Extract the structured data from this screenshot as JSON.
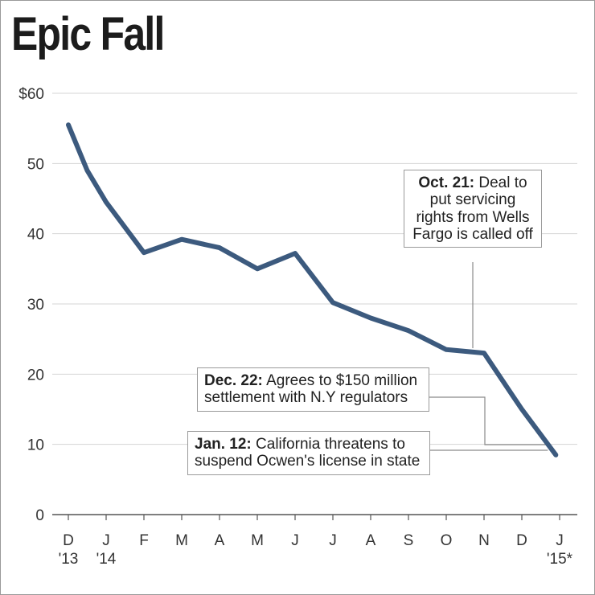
{
  "chart_data": {
    "type": "line",
    "title": "Epic Fall",
    "xlabel": "",
    "ylabel": "",
    "ylim": [
      0,
      60
    ],
    "yticks": [
      {
        "value": 60,
        "label": "$60"
      },
      {
        "value": 50,
        "label": "50"
      },
      {
        "value": 40,
        "label": "40"
      },
      {
        "value": 30,
        "label": "30"
      },
      {
        "value": 20,
        "label": "20"
      },
      {
        "value": 10,
        "label": "10"
      },
      {
        "value": 0,
        "label": "0"
      }
    ],
    "xticks": [
      {
        "line1": "D",
        "line2": "'13"
      },
      {
        "line1": "J",
        "line2": "'14"
      },
      {
        "line1": "F",
        "line2": ""
      },
      {
        "line1": "M",
        "line2": ""
      },
      {
        "line1": "A",
        "line2": ""
      },
      {
        "line1": "M",
        "line2": ""
      },
      {
        "line1": "J",
        "line2": ""
      },
      {
        "line1": "J",
        "line2": ""
      },
      {
        "line1": "A",
        "line2": ""
      },
      {
        "line1": "S",
        "line2": ""
      },
      {
        "line1": "O",
        "line2": ""
      },
      {
        "line1": "N",
        "line2": ""
      },
      {
        "line1": "D",
        "line2": ""
      },
      {
        "line1": "J",
        "line2": "'15*"
      }
    ],
    "grid": true,
    "line_color": "#3c5a7e",
    "series": [
      {
        "x": [
          0,
          0.5,
          1,
          2,
          3,
          4,
          5,
          6,
          7,
          8,
          9,
          10,
          11,
          11.5,
          12,
          12.9
        ],
        "values": [
          55.5,
          49,
          44.5,
          37.3,
          39.2,
          38,
          35,
          37.2,
          30.2,
          28,
          26.2,
          23.5,
          23,
          19,
          15,
          8.5
        ]
      }
    ],
    "annotations": [
      {
        "date": "Oct. 21:",
        "text": [
          "Deal to",
          "put servicing",
          "rights from Wells",
          "Fargo is called off"
        ]
      },
      {
        "date": "Dec. 22:",
        "text": [
          "Agrees to $150 million",
          "settlement with N.Y regulators"
        ]
      },
      {
        "date": "Jan. 12:",
        "text": [
          "California threatens to",
          "suspend Ocwen's license in state"
        ]
      }
    ]
  }
}
